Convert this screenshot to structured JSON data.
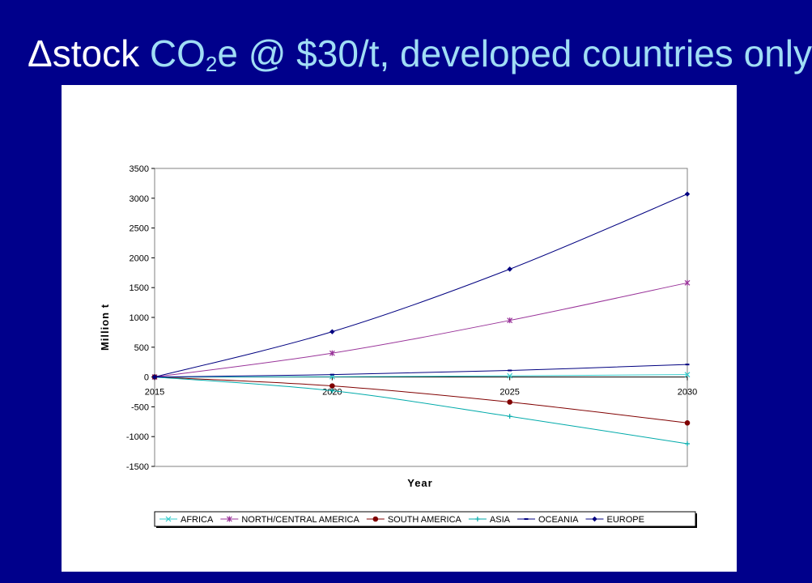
{
  "slide": {
    "title_delta": "Δstock",
    "title_co": "CO",
    "title_sub": "2",
    "title_rest": "e @ $30/t, developed countries only"
  },
  "colors": {
    "background": "#00008B",
    "title_white": "#FFFFFF",
    "title_light_blue": "#A0DDF5",
    "panel": "#FFFFFF"
  },
  "chart_data": {
    "type": "line",
    "title": "",
    "xlabel": "Year",
    "ylabel": "Million t",
    "x": [
      2015,
      2020,
      2025,
      2030
    ],
    "xticks": [
      "2015",
      "2020",
      "2025",
      "2030"
    ],
    "ylim": [
      -1500,
      3500
    ],
    "yticks": [
      3500,
      3000,
      2500,
      2000,
      1500,
      1000,
      500,
      0,
      -500,
      -1000,
      -1500
    ],
    "grid": false,
    "legend_position": "bottom",
    "series": [
      {
        "name": "AFRICA",
        "color": "#33CCCC",
        "marker": "x",
        "values": [
          0,
          5,
          20,
          40
        ]
      },
      {
        "name": "NORTH/CENTRAL AMERICA",
        "color": "#993399",
        "marker": "star",
        "values": [
          0,
          400,
          950,
          1580
        ]
      },
      {
        "name": "SOUTH AMERICA",
        "color": "#800000",
        "marker": "circle",
        "values": [
          0,
          -150,
          -420,
          -770
        ]
      },
      {
        "name": "ASIA",
        "color": "#00AAAA",
        "marker": "plus",
        "values": [
          0,
          -230,
          -660,
          -1120
        ]
      },
      {
        "name": "OCEANIA",
        "color": "#000080",
        "marker": "dash",
        "values": [
          0,
          40,
          110,
          210
        ]
      },
      {
        "name": "EUROPE",
        "color": "#000080",
        "marker": "diamond",
        "values": [
          0,
          760,
          1810,
          3070
        ]
      }
    ]
  }
}
